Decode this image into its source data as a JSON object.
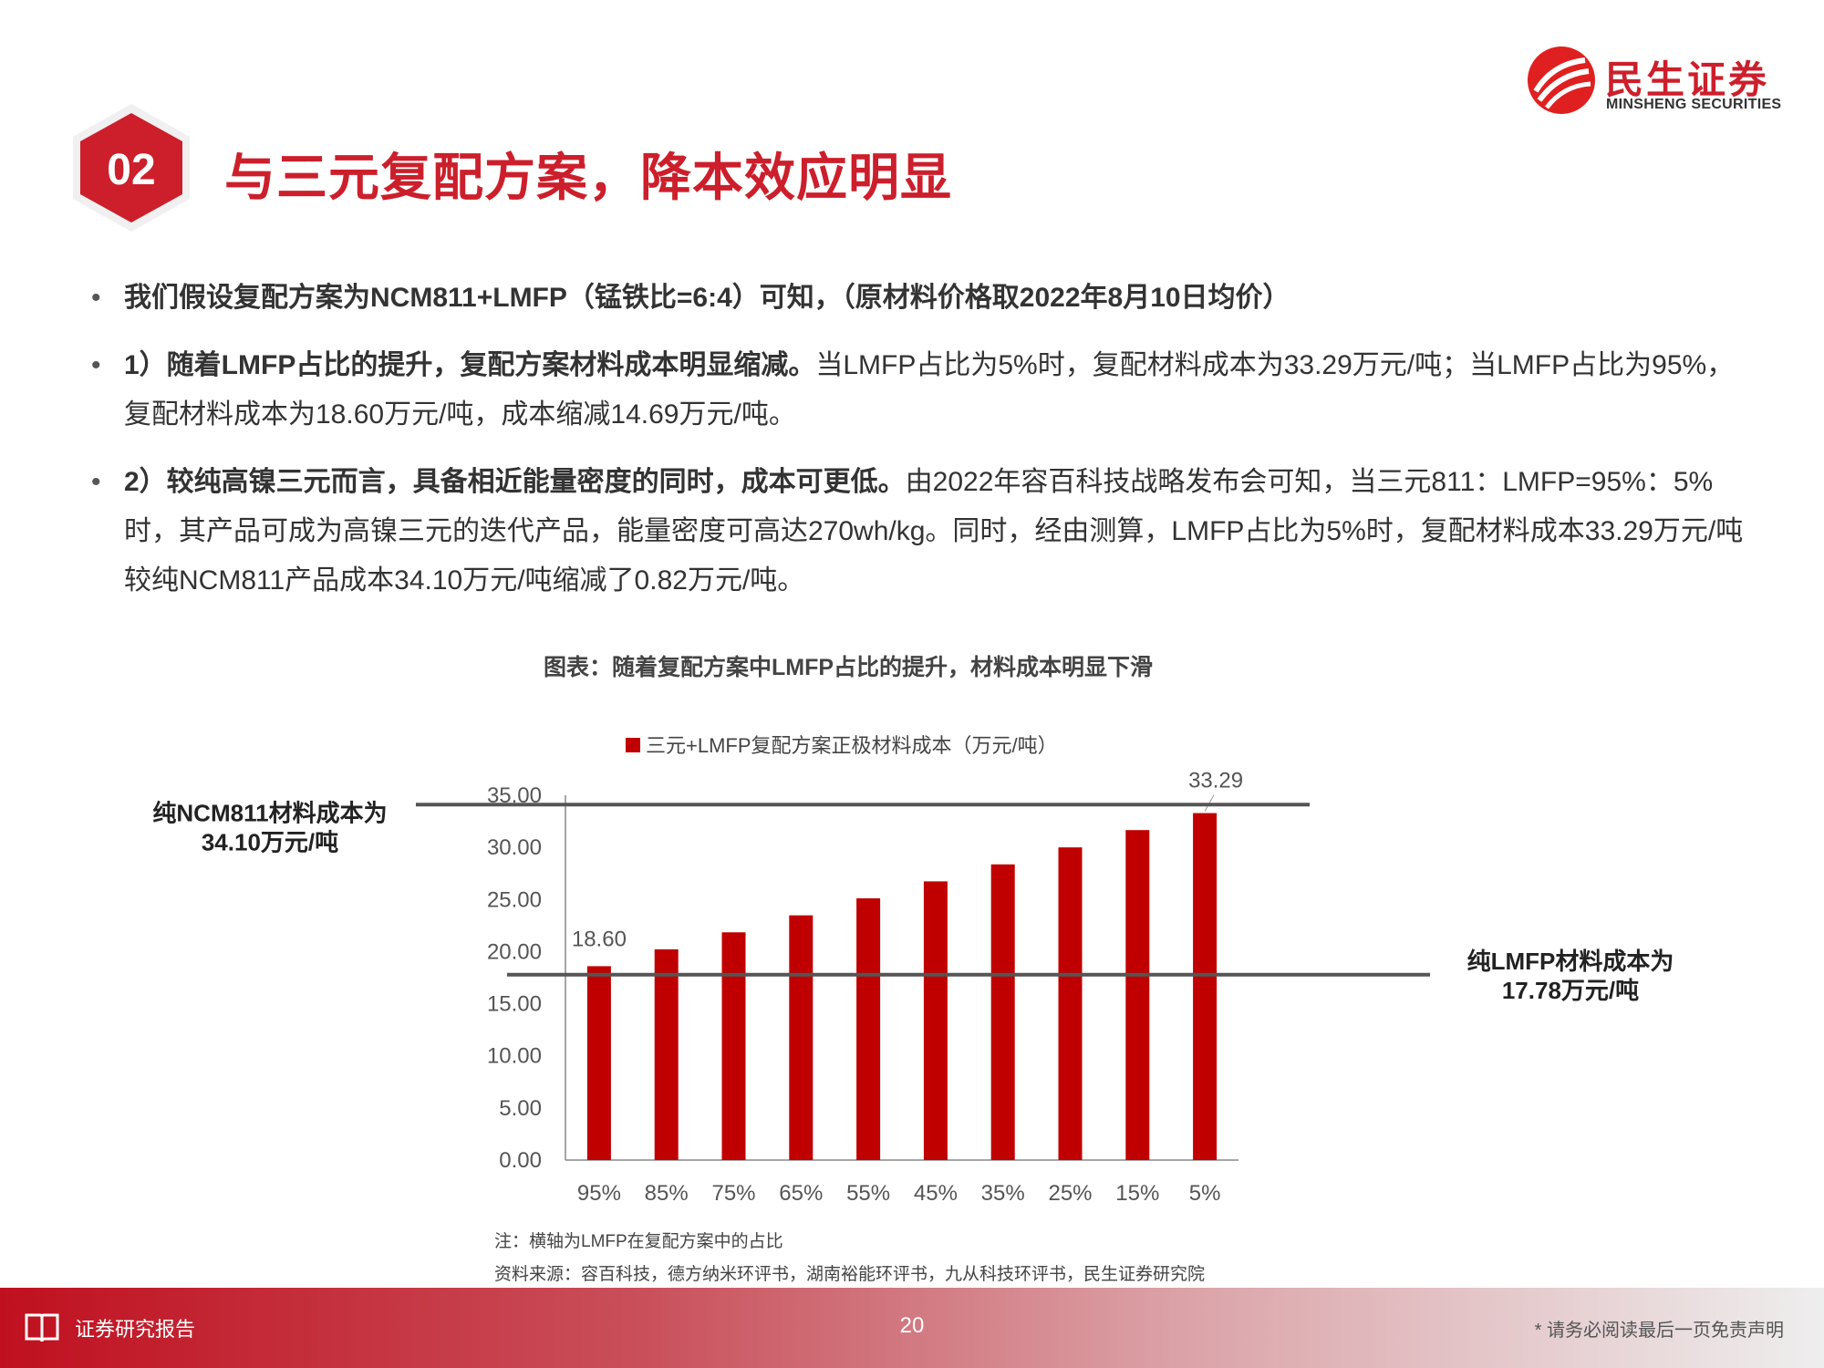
{
  "header": {
    "section_number": "02",
    "title": "与三元复配方案，降本效应明显",
    "logo_cn": "民生证券",
    "logo_en": "MINSHENG SECURITIES"
  },
  "bullets": [
    {
      "bold": "我们假设复配方案为NCM811+LMFP（锰铁比=6:4）可知，（原材料价格取2022年8月10日均价）",
      "text": ""
    },
    {
      "bold": "1）随着LMFP占比的提升，复配方案材料成本明显缩减。",
      "text": "当LMFP占比为5%时，复配材料成本为33.29万元/吨；当LMFP占比为95%，复配材料成本为18.60万元/吨，成本缩减14.69万元/吨。"
    },
    {
      "bold": "2）较纯高镍三元而言，具备相近能量密度的同时，成本可更低。",
      "text": "由2022年容百科技战略发布会可知，当三元811：LMFP=95%：5%时，其产品可成为高镍三元的迭代产品，能量密度可高达270wh/kg。同时，经由测算，LMFP占比为5%时，复配材料成本33.29万元/吨较纯NCM811产品成本34.10万元/吨缩减了0.82万元/吨。"
    }
  ],
  "chart_title": "图表：随着复配方案中LMFP占比的提升，材料成本明显下滑",
  "chart_data": {
    "type": "bar",
    "categories": [
      "95%",
      "85%",
      "75%",
      "65%",
      "55%",
      "45%",
      "35%",
      "25%",
      "15%",
      "5%"
    ],
    "series": [
      {
        "name": "三元+LMFP复配方案正极材料成本（万元/吨）",
        "values": [
          18.6,
          20.22,
          21.85,
          23.48,
          25.11,
          26.74,
          28.37,
          30.0,
          31.66,
          33.29
        ],
        "color": "#c00000"
      }
    ],
    "data_labels": [
      {
        "category": "95%",
        "text": "18.60"
      },
      {
        "category": "5%",
        "text": "33.29"
      }
    ],
    "ylim": [
      0,
      35
    ],
    "yticks": [
      "0.00",
      "5.00",
      "10.00",
      "15.00",
      "20.00",
      "25.00",
      "30.00",
      "35.00"
    ],
    "reference_lines": [
      {
        "value": 34.1,
        "label_line1": "纯NCM811材料成本为",
        "label_line2": "34.10万元/吨",
        "side": "left"
      },
      {
        "value": 17.78,
        "label_line1": "纯LMFP材料成本为",
        "label_line2": "17.78万元/吨",
        "side": "right"
      }
    ],
    "legend_position": "top",
    "grid": false
  },
  "note": "注：横轴为LMFP在复配方案中的占比",
  "source": "资料来源：容百科技，德方纳米环评书，湖南裕能环评书，九从科技环评书，民生证券研究院",
  "footer": {
    "left_text": "证券研究报告",
    "page": "20",
    "right_text": "* 请务必阅读最后一页免责声明"
  },
  "colors": {
    "brand_red": "#cc1f2b",
    "bar_red": "#c00000",
    "ref_line": "#555555"
  },
  "icons": [
    "hexagon-badge",
    "minsheng-logo-icon",
    "book-icon"
  ]
}
